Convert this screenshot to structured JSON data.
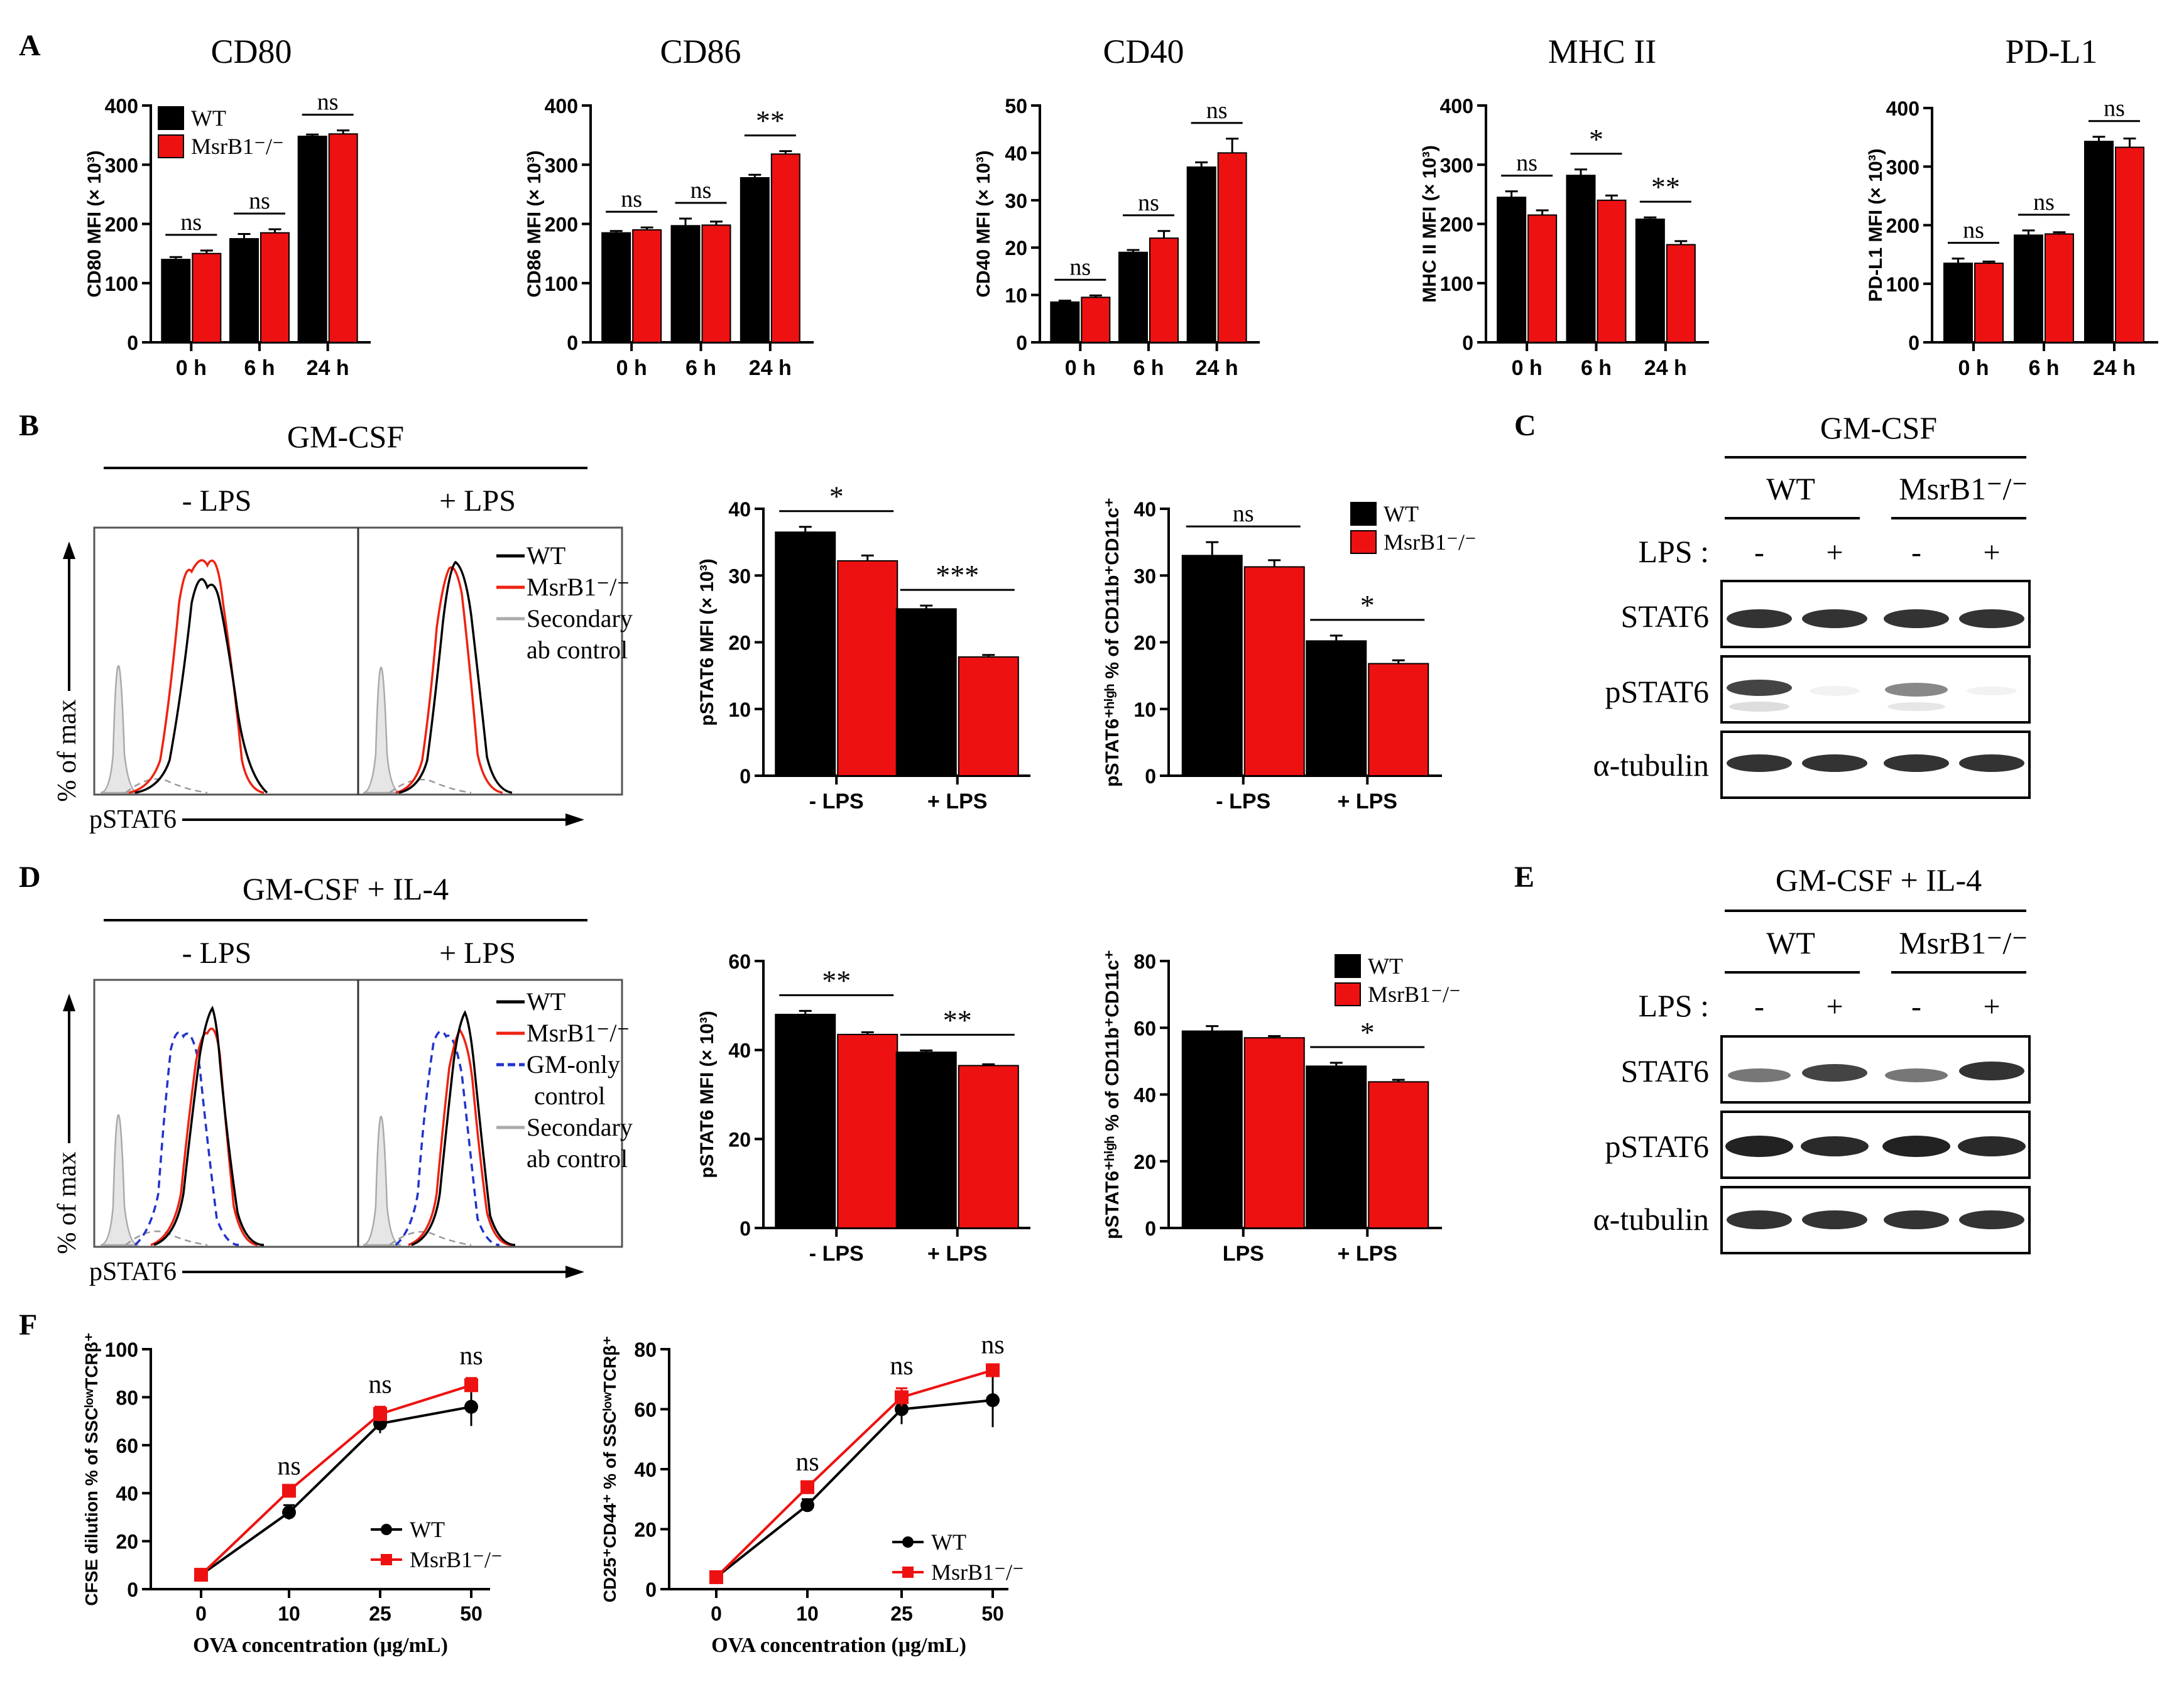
{
  "colors": {
    "wt": "#000000",
    "ko": "#ee1111",
    "gm_only": "#2233cc",
    "secondary": "#aaaaaa"
  },
  "units": {
    "ko_label": "MsrB1⁻/⁻",
    "ax_x_label": "OVA concentration (μg/mL)"
  },
  "panels": {
    "A": {
      "letter": "A"
    },
    "B": {
      "letter": "B",
      "header": "GM-CSF",
      "minus": "- LPS",
      "plus": "+ LPS",
      "legend": [
        "WT",
        "MsrB1⁻/⁻",
        "Secondary",
        "ab control"
      ],
      "yaxis": "% of max",
      "xaxis": "pSTAT6"
    },
    "C": {
      "letter": "C",
      "header": "GM-CSF",
      "wt": "WT",
      "ko": "MsrB1⁻/⁻",
      "lps": "LPS :",
      "signs": [
        "-",
        "+",
        "-",
        "+"
      ],
      "rows": [
        "STAT6",
        "pSTAT6",
        "α-tubulin"
      ]
    },
    "D": {
      "letter": "D",
      "header": "GM-CSF + IL-4",
      "minus": "- LPS",
      "plus": "+ LPS",
      "legend": [
        "WT",
        "MsrB1⁻/⁻",
        "GM-only",
        "control",
        "Secondary",
        "ab control"
      ],
      "yaxis": "% of max",
      "xaxis": "pSTAT6"
    },
    "E": {
      "letter": "E",
      "header": "GM-CSF + IL-4",
      "wt": "WT",
      "ko": "MsrB1⁻/⁻",
      "lps": "LPS :",
      "signs": [
        "-",
        "+",
        "-",
        "+"
      ],
      "rows": [
        "STAT6",
        "pSTAT6",
        "α-tubulin"
      ]
    },
    "F": {
      "letter": "F"
    }
  },
  "chart_data": [
    {
      "id": "cd80",
      "type": "bar",
      "title": "CD80",
      "ylabel": "CD80 MFI (× 10³)",
      "ylim": [
        0,
        400
      ],
      "yticks": [
        0,
        100,
        200,
        300,
        400
      ],
      "categories": [
        "0 h",
        "6 h",
        "24 h"
      ],
      "series": [
        {
          "name": "WT",
          "values": [
            140,
            175,
            348
          ],
          "errors": [
            4,
            8,
            3
          ]
        },
        {
          "name": "MsrB1⁻/⁻",
          "values": [
            150,
            185,
            352
          ],
          "errors": [
            5,
            6,
            6
          ]
        }
      ],
      "significance": [
        "ns",
        "ns",
        "ns"
      ],
      "legend": [
        "WT",
        "MsrB1⁻/⁻"
      ]
    },
    {
      "id": "cd86",
      "type": "bar",
      "title": "CD86",
      "ylabel": "CD86 MFI (× 10³)",
      "ylim": [
        0,
        400
      ],
      "yticks": [
        0,
        100,
        200,
        300,
        400
      ],
      "categories": [
        "0 h",
        "6 h",
        "24 h"
      ],
      "series": [
        {
          "name": "WT",
          "values": [
            185,
            197,
            278
          ],
          "errors": [
            3,
            12,
            5
          ]
        },
        {
          "name": "MsrB1⁻/⁻",
          "values": [
            190,
            198,
            318
          ],
          "errors": [
            4,
            6,
            5
          ]
        }
      ],
      "significance": [
        "ns",
        "ns",
        "**"
      ]
    },
    {
      "id": "cd40",
      "type": "bar",
      "title": "CD40",
      "ylabel": "CD40 MFI (× 10³)",
      "ylim": [
        0,
        50
      ],
      "yticks": [
        0,
        10,
        20,
        30,
        40,
        50
      ],
      "categories": [
        "0 h",
        "6 h",
        "24 h"
      ],
      "series": [
        {
          "name": "WT",
          "values": [
            8.5,
            19,
            37
          ],
          "errors": [
            0.3,
            0.5,
            1
          ]
        },
        {
          "name": "MsrB1⁻/⁻",
          "values": [
            9.5,
            22,
            40
          ],
          "errors": [
            0.4,
            1.5,
            3
          ]
        }
      ],
      "significance": [
        "ns",
        "ns",
        "ns"
      ]
    },
    {
      "id": "mhc2",
      "type": "bar",
      "title": "MHC II",
      "ylabel": "MHC II MFI (× 10³)",
      "ylim": [
        0,
        400
      ],
      "yticks": [
        0,
        100,
        200,
        300,
        400
      ],
      "categories": [
        "0 h",
        "6 h",
        "24 h"
      ],
      "series": [
        {
          "name": "WT",
          "values": [
            245,
            282,
            208
          ],
          "errors": [
            10,
            10,
            3
          ]
        },
        {
          "name": "MsrB1⁻/⁻",
          "values": [
            215,
            240,
            165
          ],
          "errors": [
            8,
            8,
            6
          ]
        }
      ],
      "significance": [
        "ns",
        "*",
        "**"
      ]
    },
    {
      "id": "pdl1",
      "type": "bar",
      "title": "PD-L1",
      "ylabel": "PD-L1 MFI (× 10³)",
      "ylim": [
        0,
        400
      ],
      "yticks": [
        0,
        100,
        200,
        300,
        400
      ],
      "categories": [
        "0 h",
        "6 h",
        "24 h"
      ],
      "series": [
        {
          "name": "WT",
          "values": [
            135,
            183,
            343
          ],
          "errors": [
            8,
            8,
            8
          ]
        },
        {
          "name": "MsrB1⁻/⁻",
          "values": [
            135,
            185,
            333
          ],
          "errors": [
            3,
            3,
            15
          ]
        }
      ],
      "significance": [
        "ns",
        "ns",
        "ns"
      ]
    },
    {
      "id": "b_mfi",
      "type": "bar",
      "title": "",
      "ylabel": "pSTAT6 MFI (× 10³)",
      "ylim": [
        0,
        40
      ],
      "yticks": [
        0,
        10,
        20,
        30,
        40
      ],
      "categories": [
        "- LPS",
        "+ LPS"
      ],
      "series": [
        {
          "name": "WT",
          "values": [
            36.5,
            25
          ],
          "errors": [
            0.8,
            0.5
          ]
        },
        {
          "name": "MsrB1⁻/⁻",
          "values": [
            32.2,
            17.8
          ],
          "errors": [
            0.8,
            0.3
          ]
        }
      ],
      "significance": [
        "*",
        "***"
      ]
    },
    {
      "id": "b_pct",
      "type": "bar",
      "title": "",
      "ylabel": "pSTAT6⁺ʰⁱᵍʰ % of CD11b⁺CD11c⁺",
      "ylim": [
        0,
        40
      ],
      "yticks": [
        0,
        10,
        20,
        30,
        40
      ],
      "categories": [
        "- LPS",
        "+ LPS"
      ],
      "series": [
        {
          "name": "WT",
          "values": [
            33,
            20.2
          ],
          "errors": [
            2,
            0.8
          ]
        },
        {
          "name": "MsrB1⁻/⁻",
          "values": [
            31.3,
            16.8
          ],
          "errors": [
            1,
            0.5
          ]
        }
      ],
      "significance": [
        "ns",
        "*"
      ],
      "legend": [
        "WT",
        "MsrB1⁻/⁻"
      ]
    },
    {
      "id": "d_mfi",
      "type": "bar",
      "title": "",
      "ylabel": "pSTAT6 MFI (× 10³)",
      "ylim": [
        0,
        60
      ],
      "yticks": [
        0,
        20,
        40,
        60
      ],
      "categories": [
        "- LPS",
        "+ LPS"
      ],
      "series": [
        {
          "name": "WT",
          "values": [
            48,
            39.5
          ],
          "errors": [
            0.8,
            0.4
          ]
        },
        {
          "name": "MsrB1⁻/⁻",
          "values": [
            43.5,
            36.5
          ],
          "errors": [
            0.5,
            0.3
          ]
        }
      ],
      "significance": [
        "**",
        "**"
      ]
    },
    {
      "id": "d_pct",
      "type": "bar",
      "title": "",
      "ylabel": "pSTAT6⁺ʰⁱᵍʰ % of CD11b⁺CD11c⁺",
      "ylim": [
        0,
        80
      ],
      "yticks": [
        0,
        20,
        40,
        60,
        80
      ],
      "categories": [
        "LPS",
        "+ LPS"
      ],
      "series": [
        {
          "name": "WT",
          "values": [
            59,
            48.5
          ],
          "errors": [
            1.5,
            1
          ]
        },
        {
          "name": "MsrB1⁻/⁻",
          "values": [
            57,
            43.8
          ],
          "errors": [
            0.5,
            0.6
          ]
        }
      ],
      "significance": [
        "",
        "*"
      ],
      "legend": [
        "WT",
        "MsrB1⁻/⁻"
      ]
    },
    {
      "id": "f_cfse",
      "type": "line",
      "title": "",
      "xlabel": "OVA concentration (μg/mL)",
      "ylabel": "CFSE dilution % of SSCˡᵒʷTCRβ⁺",
      "ylim": [
        0,
        100
      ],
      "yticks": [
        0,
        20,
        40,
        60,
        80,
        100
      ],
      "x": [
        0,
        10,
        25,
        50
      ],
      "series": [
        {
          "name": "WT",
          "values": [
            6,
            32,
            69,
            76
          ],
          "errors": [
            0.5,
            3,
            4,
            8
          ]
        },
        {
          "name": "MsrB1⁻/⁻",
          "values": [
            6,
            41,
            73,
            85
          ],
          "errors": [
            0.5,
            1,
            3,
            3
          ]
        }
      ],
      "significance": [
        "",
        "ns",
        "ns",
        "ns"
      ],
      "legend": [
        "WT",
        "MsrB1⁻/⁻"
      ]
    },
    {
      "id": "f_cd25",
      "type": "line",
      "title": "",
      "xlabel": "OVA concentration (μg/mL)",
      "ylabel": "CD25⁺CD44⁺ % of SSCˡᵒʷTCRβ⁺",
      "ylim": [
        0,
        80
      ],
      "yticks": [
        0,
        20,
        40,
        60,
        80
      ],
      "x": [
        0,
        10,
        25,
        50
      ],
      "series": [
        {
          "name": "WT",
          "values": [
            4,
            28,
            60,
            63
          ],
          "errors": [
            0.5,
            2,
            5,
            9
          ]
        },
        {
          "name": "MsrB1⁻/⁻",
          "values": [
            4,
            34,
            64,
            73
          ],
          "errors": [
            0.5,
            1,
            3,
            1
          ]
        }
      ],
      "significance": [
        "",
        "ns",
        "ns",
        "ns"
      ],
      "legend": [
        "WT",
        "MsrB1⁻/⁻"
      ]
    }
  ]
}
